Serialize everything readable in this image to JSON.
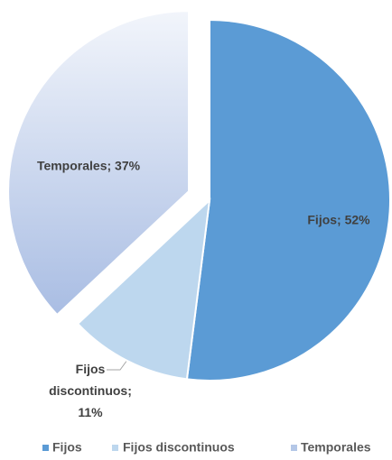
{
  "chart_data": {
    "type": "pie",
    "categories": [
      "Fijos",
      "Fijos discontinuos",
      "Temporales"
    ],
    "values": [
      52,
      11,
      37
    ],
    "value_labels": [
      "Fijos; 52%",
      "Fijos discontinuos; 11%",
      "Temporales; 37%"
    ],
    "colors": [
      "#5b9bd5",
      "#bdd7ee",
      "#b4c7e7"
    ],
    "exploded": [
      false,
      false,
      true
    ],
    "legend": "bottom"
  }
}
